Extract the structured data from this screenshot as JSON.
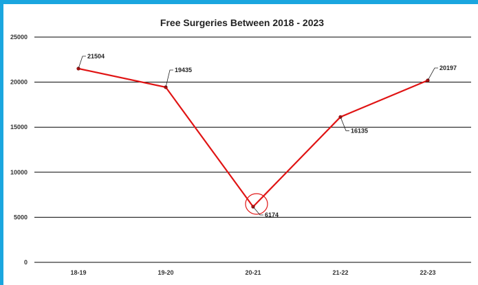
{
  "chart_data": {
    "type": "line",
    "title": "Free Surgeries Between 2018 - 2023",
    "categories": [
      "18-19",
      "19-20",
      "20-21",
      "21-22",
      "22-23"
    ],
    "series": [
      {
        "values": [
          21504,
          19435,
          6174,
          16135,
          20197
        ]
      }
    ],
    "data_labels": [
      "21504",
      "19435",
      "6174",
      "16135",
      "20197"
    ],
    "ylim": [
      0,
      25000
    ],
    "yticks": [
      0,
      5000,
      10000,
      15000,
      20000,
      25000
    ],
    "grid": "horizontal",
    "highlighted_category": "20-21",
    "colors": {
      "line": "#e01414",
      "grid": "#000000",
      "frame": "#1aa6df",
      "highlight_circle": "#e01414"
    }
  }
}
